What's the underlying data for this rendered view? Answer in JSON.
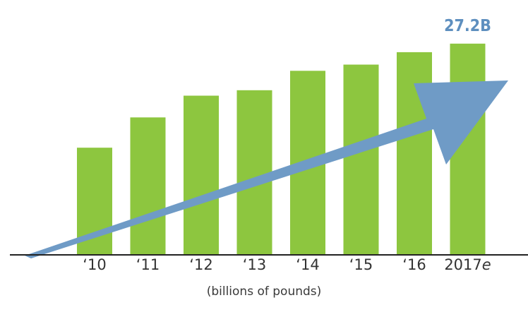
{
  "chart_data": {
    "type": "bar",
    "categories": [
      "‘10",
      "‘11",
      "‘12",
      "‘13",
      "‘14",
      "‘15",
      "‘16",
      "2017e"
    ],
    "values": [
      13.8,
      17.7,
      20.5,
      21.2,
      23.7,
      24.5,
      26.1,
      27.2
    ],
    "data_labels": [
      "",
      "",
      "",
      "",
      "",
      "",
      "",
      "27.2B"
    ],
    "title": "",
    "xlabel": "(billions of pounds)",
    "ylabel": "",
    "ylim": [
      0,
      31
    ],
    "grid": false,
    "legend": "none",
    "bar_color": "#8dc63f",
    "arrow_color": "#6f9bc6",
    "label_color": "#5e8fbf",
    "baseline_color": "#222222",
    "annotations": [
      "upward trend arrow"
    ]
  }
}
